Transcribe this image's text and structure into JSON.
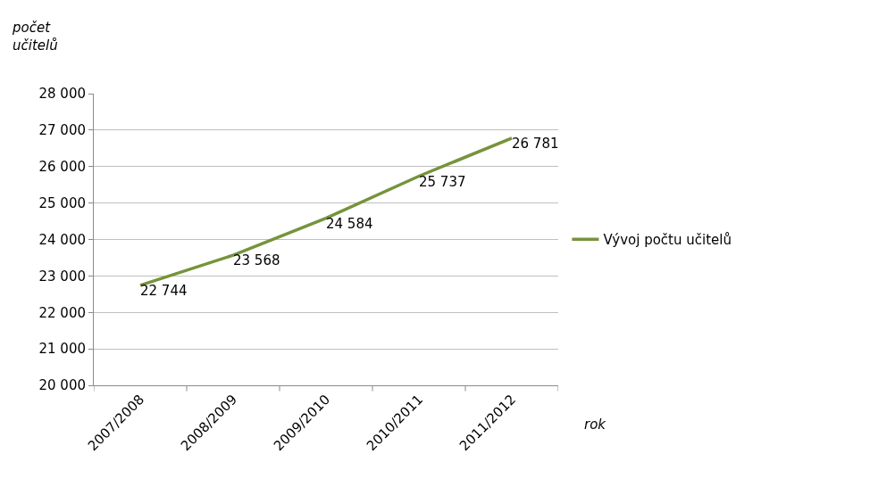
{
  "chart_data": {
    "type": "line",
    "ylabel": "počet\nučitelů",
    "xlabel": "rok",
    "categories": [
      "2007/2008",
      "2008/2009",
      "2009/2010",
      "2010/2011",
      "2011/2012"
    ],
    "series": [
      {
        "name": "Vývoj počtu učitelů",
        "color": "#77933c",
        "values": [
          22744,
          23568,
          24584,
          25737,
          26781
        ],
        "value_labels": [
          "22 744",
          "23 568",
          "24 584",
          "25 737",
          "26 781"
        ]
      }
    ],
    "ylim": [
      20000,
      28000
    ],
    "yticks": [
      {
        "value": 20000,
        "label": "20 000"
      },
      {
        "value": 21000,
        "label": "21 000"
      },
      {
        "value": 22000,
        "label": "22 000"
      },
      {
        "value": 23000,
        "label": "23 000"
      },
      {
        "value": 24000,
        "label": "24 000"
      },
      {
        "value": 25000,
        "label": "25 000"
      },
      {
        "value": 26000,
        "label": "26 000"
      },
      {
        "value": 27000,
        "label": "27 000"
      },
      {
        "value": 28000,
        "label": "28 000"
      }
    ],
    "grid": "y",
    "legend": "right",
    "marker": "none",
    "line_style": "solid"
  }
}
